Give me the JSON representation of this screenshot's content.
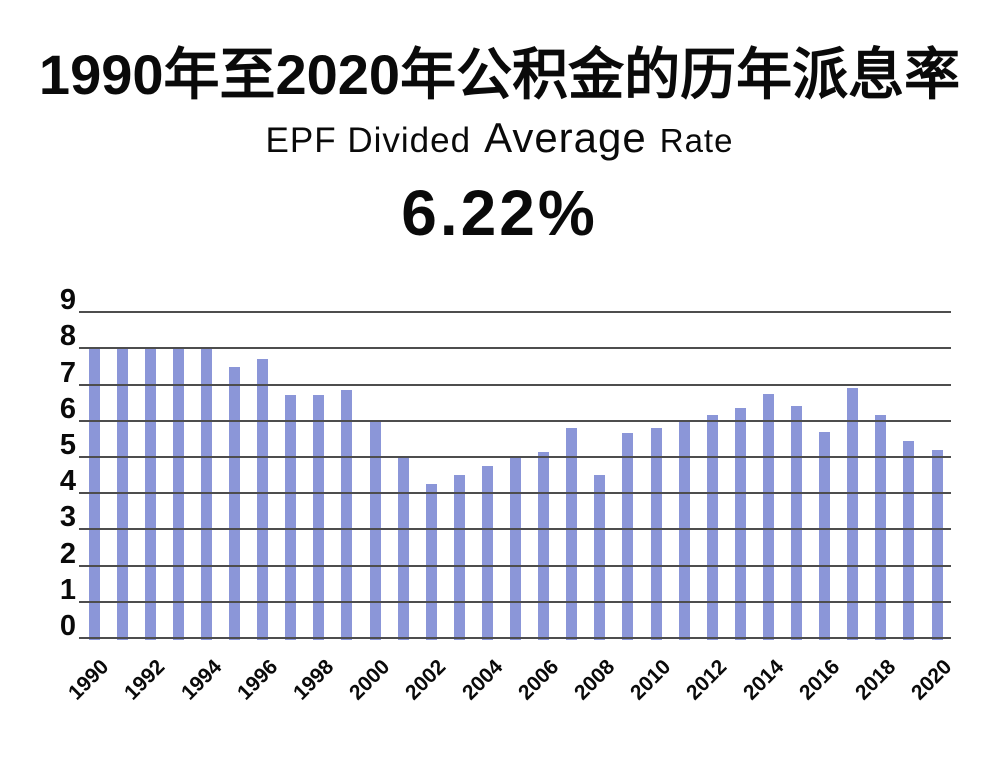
{
  "page": {
    "background_color": "#ffffff",
    "text_color": "#0a0a0a"
  },
  "header": {
    "title": "1990年至2020年公积金的历年派息率",
    "subtitle": {
      "lead": "EPF Divided",
      "emphasis": "Average",
      "tail": "Rate"
    },
    "average_rate": "6.22%"
  },
  "chart_data": {
    "type": "bar",
    "title": "1990年至2020年公积金的历年派息率",
    "subtitle": "EPF Divided Average Rate",
    "highlight_value": "6.22%",
    "x": [
      1990,
      1991,
      1992,
      1993,
      1994,
      1995,
      1996,
      1997,
      1998,
      1999,
      2000,
      2001,
      2002,
      2003,
      2004,
      2005,
      2006,
      2007,
      2008,
      2009,
      2010,
      2011,
      2012,
      2013,
      2014,
      2015,
      2016,
      2017,
      2018,
      2019,
      2020
    ],
    "values": [
      8.0,
      8.0,
      8.0,
      8.0,
      8.0,
      7.5,
      7.7,
      6.7,
      6.7,
      6.84,
      6.0,
      5.0,
      4.25,
      4.5,
      4.75,
      5.0,
      5.15,
      5.8,
      4.5,
      5.65,
      5.8,
      6.0,
      6.15,
      6.35,
      6.75,
      6.4,
      5.7,
      6.9,
      6.15,
      5.45,
      5.2
    ],
    "x_tick_labels": [
      "1990",
      "1992",
      "1994",
      "1996",
      "1998",
      "2000",
      "2002",
      "2004",
      "2006",
      "2008",
      "2010",
      "2012",
      "2014",
      "2016",
      "2018",
      "2020"
    ],
    "y_ticks": [
      0,
      1,
      2,
      3,
      4,
      5,
      6,
      7,
      8,
      9
    ],
    "ylim": [
      0,
      9
    ],
    "xlabel": "",
    "ylabel": "",
    "legend": "none",
    "grid": "horizontal",
    "bar_color": "#8b96d8",
    "gridline_color": "#4d4d4d"
  }
}
